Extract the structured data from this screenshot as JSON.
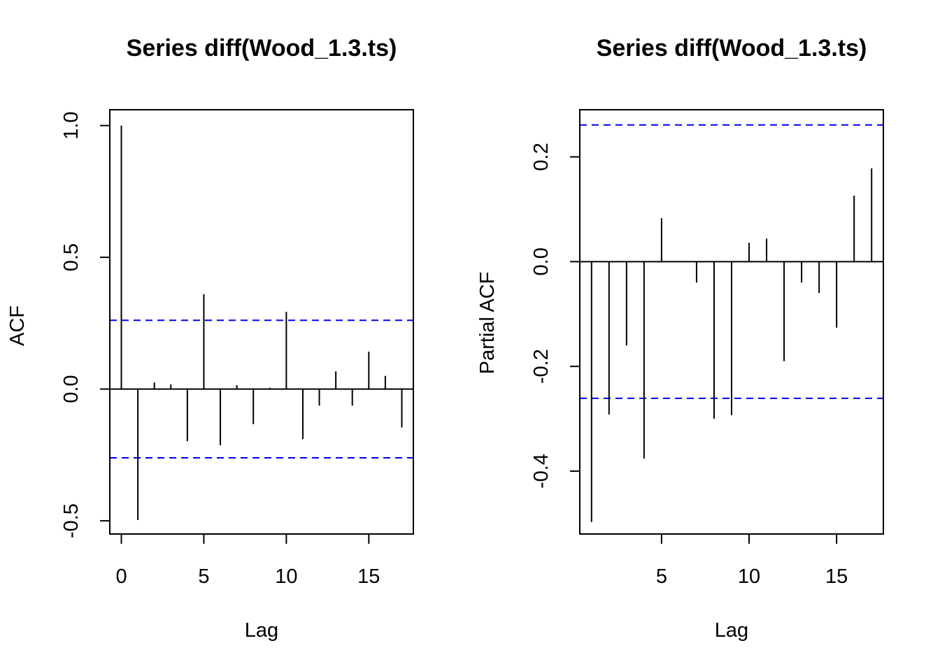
{
  "chart_data": [
    {
      "type": "bar",
      "title": "Series  diff(Wood_1.3.ts)",
      "xlabel": "Lag",
      "ylabel": "ACF",
      "xlim": [
        -0.7,
        17.7
      ],
      "ylim": [
        -0.55,
        1.06
      ],
      "x_ticks": [
        0,
        5,
        10,
        15
      ],
      "y_ticks": [
        -0.5,
        0.0,
        0.5,
        1.0
      ],
      "x_tick_labels": [
        "0",
        "5",
        "10",
        "15"
      ],
      "y_tick_labels": [
        "-0.5",
        "0.0",
        "0.5",
        "1.0"
      ],
      "lags": [
        0,
        1,
        2,
        3,
        4,
        5,
        6,
        7,
        8,
        9,
        10,
        11,
        12,
        13,
        14,
        15,
        16,
        17
      ],
      "values": [
        1.0,
        -0.497,
        0.025,
        0.018,
        -0.198,
        0.36,
        -0.213,
        0.015,
        -0.133,
        0.005,
        0.293,
        -0.19,
        -0.063,
        0.067,
        -0.063,
        0.142,
        0.05,
        -0.146
      ],
      "confidence_bound": 0.261,
      "confidence_line_color": "#0000ee",
      "grid": false
    },
    {
      "type": "bar",
      "title": "Series  diff(Wood_1.3.ts)",
      "xlabel": "Lag",
      "ylabel": "Partial ACF",
      "xlim": [
        0.33,
        17.67
      ],
      "ylim": [
        -0.52,
        0.29
      ],
      "x_ticks": [
        5,
        10,
        15
      ],
      "y_ticks": [
        -0.4,
        -0.2,
        0.0,
        0.2
      ],
      "x_tick_labels": [
        "5",
        "10",
        "15"
      ],
      "y_tick_labels": [
        "-0.4",
        "-0.2",
        "0.0",
        "0.2"
      ],
      "lags": [
        1,
        2,
        3,
        4,
        5,
        6,
        7,
        8,
        9,
        10,
        11,
        12,
        13,
        14,
        15,
        16,
        17
      ],
      "values": [
        -0.497,
        -0.292,
        -0.16,
        -0.376,
        0.083,
        0.0,
        -0.04,
        -0.3,
        -0.293,
        0.036,
        0.044,
        -0.19,
        -0.04,
        -0.06,
        -0.126,
        0.126,
        0.178
      ],
      "confidence_bound": 0.261,
      "confidence_line_color": "#0000ee",
      "grid": false
    }
  ]
}
